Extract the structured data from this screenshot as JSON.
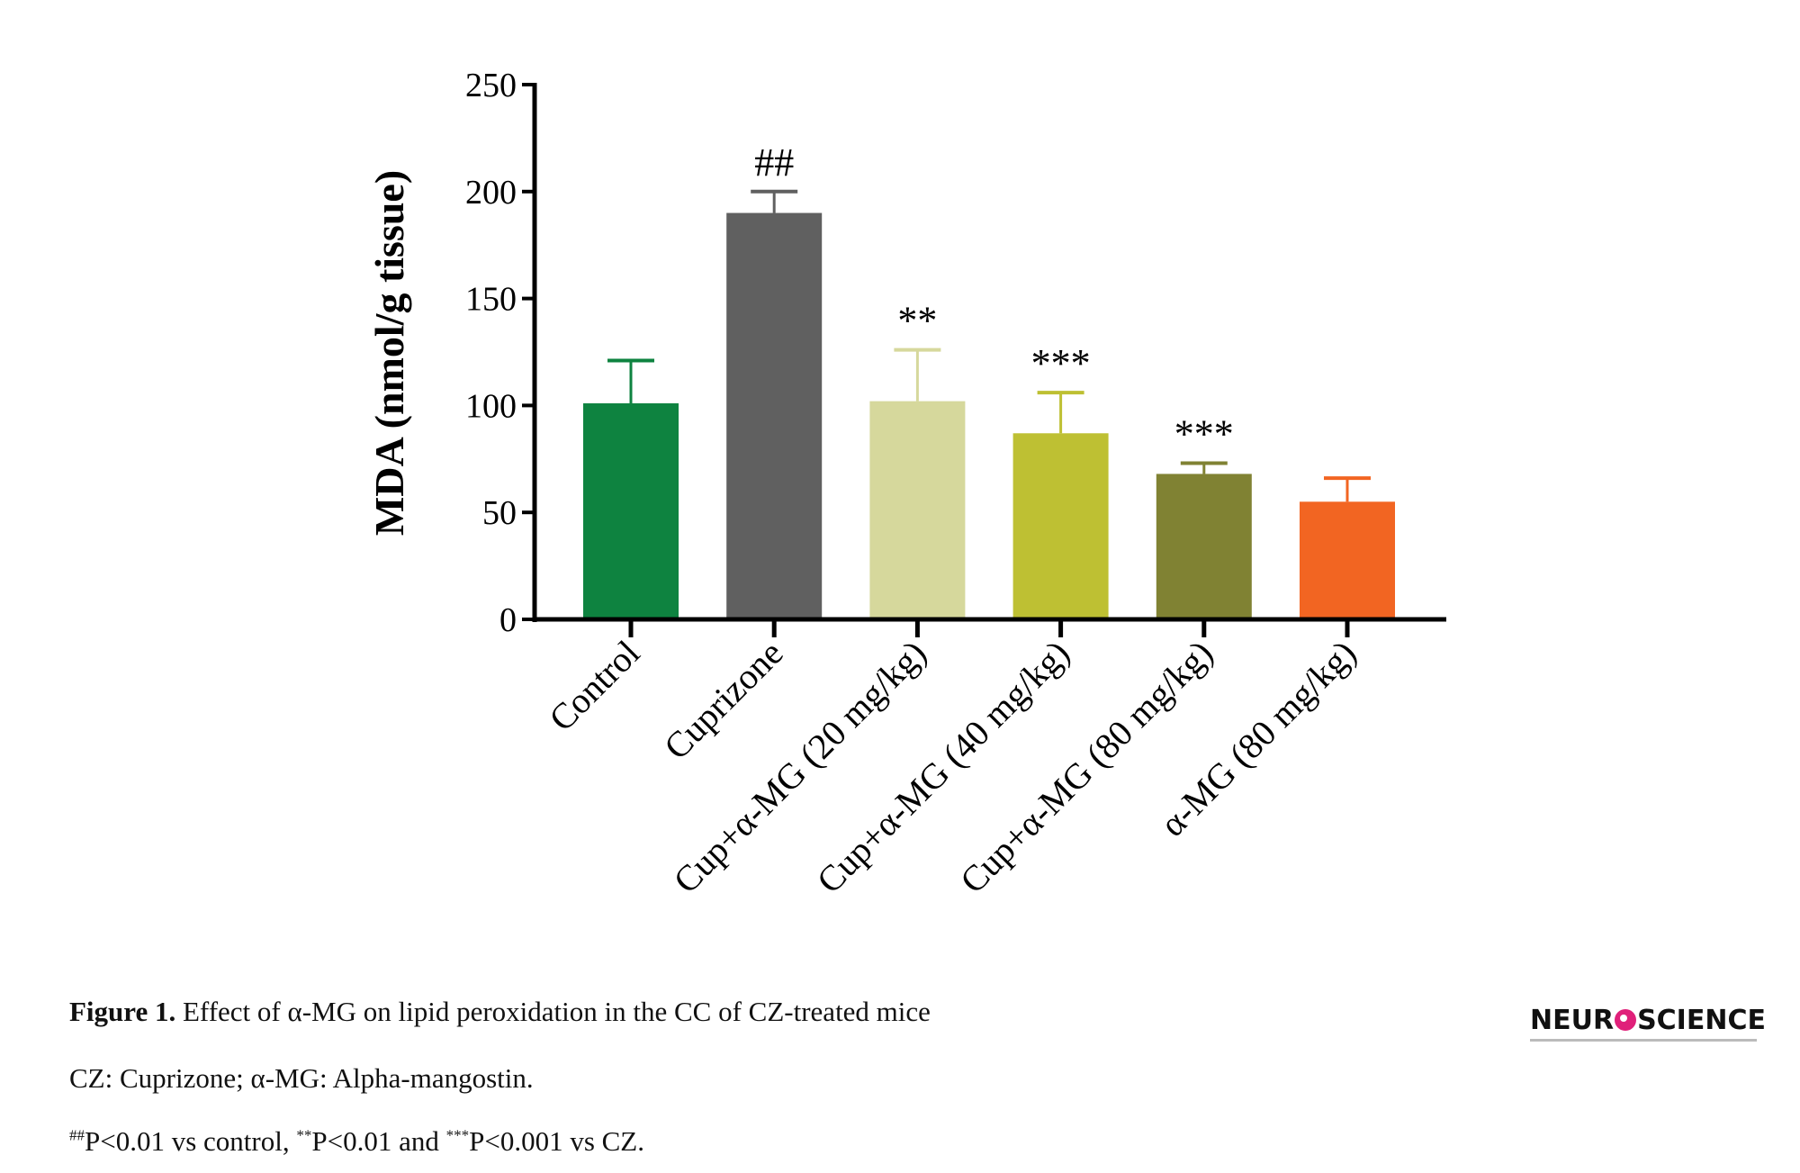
{
  "chart_data": {
    "type": "bar",
    "title": "",
    "xlabel": "",
    "ylabel": "MDA (nmol/g tissue)",
    "ylim": [
      0,
      250
    ],
    "yticks": [
      0,
      50,
      100,
      150,
      200,
      250
    ],
    "grid": false,
    "categories": [
      "Control",
      "Cuprizone",
      "Cup+α-MG (20 mg/kg)",
      "Cup+α-MG (40 mg/kg)",
      "Cup+α-MG (80 mg/kg)",
      "α-MG (80 mg/kg)"
    ],
    "values": [
      101,
      190,
      102,
      87,
      68,
      55
    ],
    "error_upper": [
      121,
      200,
      126,
      106,
      73,
      66
    ],
    "annotations": [
      "",
      "##",
      "**",
      "***",
      "***",
      ""
    ],
    "colors": [
      "#0e8340",
      "#606060",
      "#d6d89c",
      "#bec033",
      "#808233",
      "#f26522"
    ]
  },
  "caption": {
    "label": "Figure 1.",
    "title": "Effect of α-MG on lipid peroxidation in the CC of CZ-treated mice",
    "line2": "CZ: Cuprizone; α-MG: Alpha-mangostin.",
    "line3_sup1": "##",
    "line3_a": "P<0.01 vs control, ",
    "line3_sup2": "**",
    "line3_b": "P<0.01 and ",
    "line3_sup3": "***",
    "line3_c": "P<0.001 vs CZ."
  },
  "logo": {
    "left": "NEUR",
    "right": "SCIENCE"
  }
}
